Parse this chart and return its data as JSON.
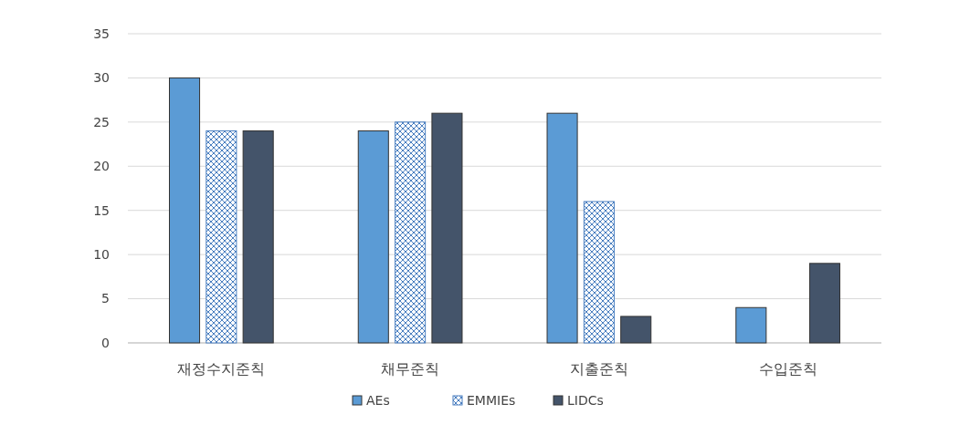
{
  "chart_data": {
    "type": "bar",
    "categories": [
      "재정수지준칙",
      "채무준칙",
      "지출준칙",
      "수입준칙"
    ],
    "series": [
      {
        "name": "AEs",
        "color": "#5b9bd5",
        "values": [
          30,
          24,
          26,
          4
        ]
      },
      {
        "name": "EMMIEs",
        "color": "#4a7fc0",
        "values": [
          24,
          25,
          16,
          0
        ]
      },
      {
        "name": "LIDCs",
        "color": "#44546a",
        "values": [
          24,
          26,
          3,
          9
        ]
      }
    ],
    "ylim": [
      0,
      35
    ],
    "yticks": [
      0,
      5,
      10,
      15,
      20,
      25,
      30,
      35
    ],
    "grid": "y",
    "legend": "bottom"
  }
}
